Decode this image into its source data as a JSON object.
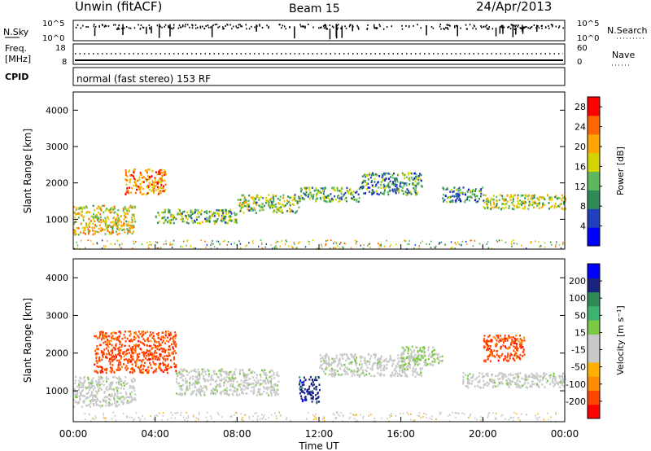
{
  "header": {
    "station": "Unwin (fitACF)",
    "beam": "Beam 15",
    "date": "24/Apr/2013"
  },
  "top_panels": {
    "nsky_label": "N.Sky",
    "nsearch_label": "N.Search",
    "nsky_ticks": [
      "10^5",
      "10^0"
    ],
    "nsearch_ticks": [
      "10^5",
      "10^0"
    ],
    "freq_label_1": "Freq.",
    "freq_label_2": "[MHz]",
    "freq_ticks": [
      "18",
      "8"
    ],
    "nave_label": "Nave",
    "nave_ticks": [
      "60",
      "0"
    ],
    "cpid_label": "CPID",
    "cpid_text": "normal (fast stereo) 153 RF"
  },
  "colors": {
    "power_scale": [
      "#0000ff",
      "#1f3fbf",
      "#2e8b57",
      "#5cb85c",
      "#d4d400",
      "#ffa500",
      "#ff6600",
      "#ff0000"
    ],
    "velocity_scale": [
      "#ff0000",
      "#ff4500",
      "#ff8c00",
      "#ffb000",
      "#c8c8c8",
      "#c8c8c8",
      "#7ac943",
      "#3cb371",
      "#2e8b57",
      "#1a237e",
      "#0000ff"
    ]
  },
  "chart_data": [
    {
      "type": "heatmap",
      "panel": "power",
      "ylabel": "Slant Range [km]",
      "yticks": [
        "1000",
        "2000",
        "3000",
        "4000"
      ],
      "ylim": [
        180,
        4500
      ],
      "xlim": [
        0,
        24
      ],
      "colorbar_label": "Power [dB]",
      "colorbar_ticks": [
        "4",
        "8",
        "12",
        "16",
        "20",
        "24",
        "28"
      ],
      "colorbar_range": [
        0,
        30
      ],
      "features": [
        {
          "t0": 0.0,
          "t1": 3.0,
          "r0": 600,
          "r1": 1400,
          "value": 18
        },
        {
          "t0": 2.5,
          "t1": 4.5,
          "r0": 1700,
          "r1": 2400,
          "value": 22
        },
        {
          "t0": 4.0,
          "t1": 8.0,
          "r0": 900,
          "r1": 1300,
          "value": 13
        },
        {
          "t0": 8.0,
          "t1": 11.0,
          "r0": 1200,
          "r1": 1700,
          "value": 14
        },
        {
          "t0": 11.0,
          "t1": 14.0,
          "r0": 1500,
          "r1": 1900,
          "value": 12
        },
        {
          "t0": 14.0,
          "t1": 17.0,
          "r0": 1700,
          "r1": 2300,
          "value": 10
        },
        {
          "t0": 18.0,
          "t1": 20.0,
          "r0": 1500,
          "r1": 1900,
          "value": 9
        },
        {
          "t0": 20.0,
          "t1": 24.0,
          "r0": 1300,
          "r1": 1700,
          "value": 15
        }
      ]
    },
    {
      "type": "heatmap",
      "panel": "velocity",
      "ylabel": "Slant Range [km]",
      "yticks": [
        "1000",
        "2000",
        "3000",
        "4000"
      ],
      "ylim": [
        180,
        4500
      ],
      "xlim": [
        0,
        24
      ],
      "xlabel": "Time UT",
      "xticks": [
        "00:00",
        "04:00",
        "08:00",
        "12:00",
        "16:00",
        "20:00",
        "00:00"
      ],
      "colorbar_label": "Velocity [m s⁻¹]",
      "colorbar_ticks": [
        "200",
        "100",
        "50",
        "15",
        "-15",
        "-50",
        "-100",
        "-200"
      ],
      "colorbar_range": [
        -250,
        250
      ],
      "features": [
        {
          "t0": 0.0,
          "t1": 3.0,
          "r0": 600,
          "r1": 1400,
          "value": 0
        },
        {
          "t0": 1.0,
          "t1": 5.0,
          "r0": 1500,
          "r1": 2600,
          "value": -180
        },
        {
          "t0": 5.0,
          "t1": 10.0,
          "r0": 900,
          "r1": 1600,
          "value": 0
        },
        {
          "t0": 11.0,
          "t1": 12.0,
          "r0": 700,
          "r1": 1400,
          "value": 180
        },
        {
          "t0": 12.0,
          "t1": 17.0,
          "r0": 1400,
          "r1": 2000,
          "value": 0
        },
        {
          "t0": 16.0,
          "t1": 18.0,
          "r0": 1700,
          "r1": 2200,
          "value": 30
        },
        {
          "t0": 20.0,
          "t1": 22.0,
          "r0": 1800,
          "r1": 2500,
          "value": -180
        },
        {
          "t0": 19.0,
          "t1": 24.0,
          "r0": 1100,
          "r1": 1500,
          "value": 0
        }
      ]
    }
  ]
}
